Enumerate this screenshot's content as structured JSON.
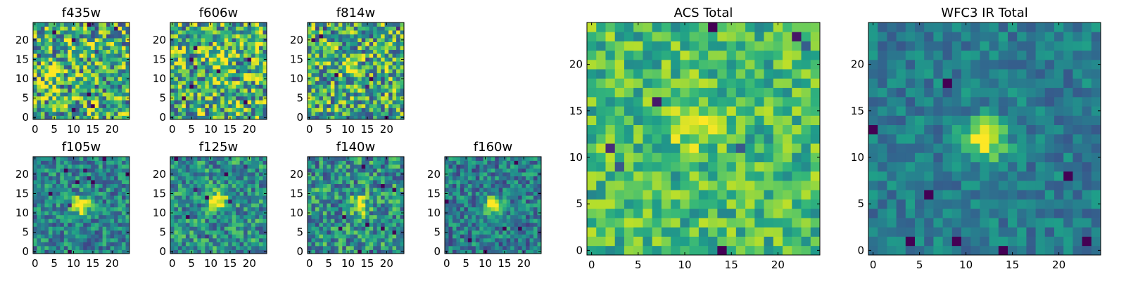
{
  "figure": {
    "description_free": true
  },
  "chart_data": [
    {
      "type": "heatmap",
      "title": "f435w",
      "xticks": [
        "0",
        "5",
        "10",
        "15",
        "20"
      ],
      "yticks": [
        "0",
        "5",
        "10",
        "15",
        "20"
      ],
      "xlim": [
        -0.5,
        24.5
      ],
      "ylim": [
        -0.5,
        24.5
      ],
      "grid_size": 25,
      "colormap": "viridis",
      "source_center": [
        4,
        12
      ],
      "source_strength": 0.35,
      "noise_level": 0.85,
      "baseline": 0.62,
      "seed": 11
    },
    {
      "type": "heatmap",
      "title": "f606w",
      "xticks": [
        "0",
        "5",
        "10",
        "15",
        "20"
      ],
      "yticks": [
        "0",
        "5",
        "10",
        "15",
        "20"
      ],
      "xlim": [
        -0.5,
        24.5
      ],
      "ylim": [
        -0.5,
        24.5
      ],
      "grid_size": 25,
      "colormap": "viridis",
      "source_center": [
        11,
        15
      ],
      "source_strength": 0.3,
      "noise_level": 0.85,
      "baseline": 0.64,
      "seed": 23
    },
    {
      "type": "heatmap",
      "title": "f814w",
      "xticks": [
        "0",
        "5",
        "10",
        "15",
        "20"
      ],
      "yticks": [
        "0",
        "5",
        "10",
        "15",
        "20"
      ],
      "xlim": [
        -0.5,
        24.5
      ],
      "ylim": [
        -0.5,
        24.5
      ],
      "grid_size": 25,
      "colormap": "viridis",
      "source_center": [
        11,
        13
      ],
      "source_strength": 0.45,
      "noise_level": 0.8,
      "baseline": 0.6,
      "seed": 37
    },
    {
      "type": "heatmap",
      "title": "f105w",
      "xticks": [
        "0",
        "5",
        "10",
        "15",
        "20"
      ],
      "yticks": [
        "0",
        "5",
        "10",
        "15",
        "20"
      ],
      "xlim": [
        -0.5,
        24.5
      ],
      "ylim": [
        -0.5,
        24.5
      ],
      "grid_size": 25,
      "colormap": "viridis",
      "source_center": [
        12,
        12
      ],
      "source_strength": 0.75,
      "noise_level": 0.5,
      "baseline": 0.45,
      "seed": 41
    },
    {
      "type": "heatmap",
      "title": "f125w",
      "xticks": [
        "0",
        "5",
        "10",
        "15",
        "20"
      ],
      "yticks": [
        "0",
        "5",
        "10",
        "15",
        "20"
      ],
      "xlim": [
        -0.5,
        24.5
      ],
      "ylim": [
        -0.5,
        24.5
      ],
      "grid_size": 25,
      "colormap": "viridis",
      "source_center": [
        12,
        13
      ],
      "source_strength": 0.65,
      "noise_level": 0.55,
      "baseline": 0.5,
      "seed": 53
    },
    {
      "type": "heatmap",
      "title": "f140w",
      "xticks": [
        "0",
        "5",
        "10",
        "15",
        "20"
      ],
      "yticks": [
        "0",
        "5",
        "10",
        "15",
        "20"
      ],
      "xlim": [
        -0.5,
        24.5
      ],
      "ylim": [
        -0.5,
        24.5
      ],
      "grid_size": 25,
      "colormap": "viridis",
      "source_center": [
        13,
        12
      ],
      "source_strength": 0.6,
      "noise_level": 0.6,
      "baseline": 0.5,
      "seed": 67
    },
    {
      "type": "heatmap",
      "title": "f160w",
      "xticks": [
        "0",
        "5",
        "10",
        "15",
        "20"
      ],
      "yticks": [
        "0",
        "5",
        "10",
        "15",
        "20"
      ],
      "xlim": [
        -0.5,
        24.5
      ],
      "ylim": [
        -0.5,
        24.5
      ],
      "grid_size": 25,
      "colormap": "viridis",
      "source_center": [
        12,
        12
      ],
      "source_strength": 0.8,
      "noise_level": 0.5,
      "baseline": 0.42,
      "seed": 79
    },
    {
      "type": "heatmap",
      "title": "ACS Total",
      "xticks": [
        "0",
        "5",
        "10",
        "15",
        "20"
      ],
      "yticks": [
        "0",
        "5",
        "10",
        "15",
        "20"
      ],
      "xlim": [
        -0.5,
        24.5
      ],
      "ylim": [
        -0.5,
        24.5
      ],
      "grid_size": 25,
      "colormap": "viridis",
      "source_center": [
        11,
        13
      ],
      "source_strength": 0.3,
      "noise_level": 0.45,
      "baseline": 0.68,
      "seed": 97
    },
    {
      "type": "heatmap",
      "title": "WFC3 IR Total",
      "xticks": [
        "0",
        "5",
        "10",
        "15",
        "20"
      ],
      "yticks": [
        "0",
        "5",
        "10",
        "15",
        "20"
      ],
      "xlim": [
        -0.5,
        24.5
      ],
      "ylim": [
        -0.5,
        24.5
      ],
      "grid_size": 25,
      "colormap": "viridis",
      "source_center": [
        12,
        12
      ],
      "source_strength": 0.65,
      "noise_level": 0.3,
      "baseline": 0.42,
      "seed": 131
    }
  ]
}
